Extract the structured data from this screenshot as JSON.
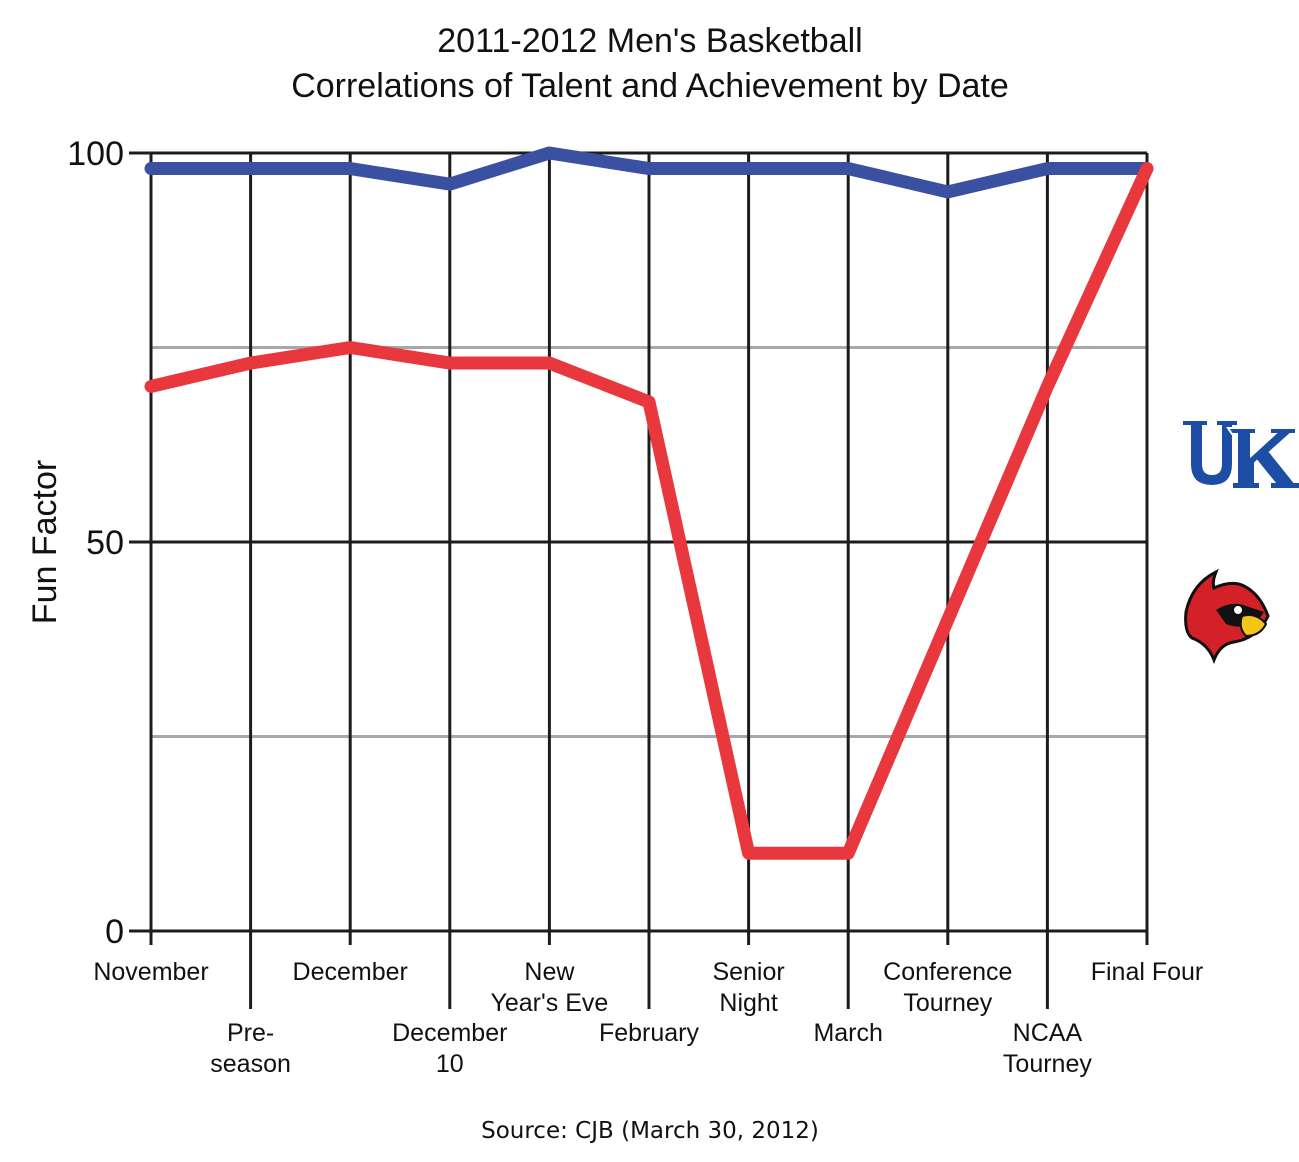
{
  "chart_data": {
    "type": "line",
    "title": [
      "2011-2012 Men's Basketball",
      "Correlations of Talent and Achievement by Date"
    ],
    "ylabel": "Fun Factor",
    "xlabel": "",
    "ylim": [
      0,
      100
    ],
    "y_ticks": [
      "0",
      "50",
      "100"
    ],
    "categories": [
      [
        "November"
      ],
      [
        "Pre-",
        "season"
      ],
      [
        "December"
      ],
      [
        "December",
        "10"
      ],
      [
        "New",
        "Year's Eve"
      ],
      [
        "February"
      ],
      [
        "Senior",
        "Night"
      ],
      [
        "March"
      ],
      [
        "Conference",
        "Tourney"
      ],
      [
        "NCAA",
        "Tourney"
      ],
      [
        "Final Four"
      ]
    ],
    "label_rows": [
      0,
      1,
      0,
      1,
      0,
      1,
      0,
      1,
      0,
      1,
      0
    ],
    "series": [
      {
        "values": [
          98,
          98,
          98,
          96,
          100,
          98,
          98,
          98,
          95,
          98,
          98
        ],
        "color": "#3a50a0",
        "logo": "uk-logo"
      },
      {
        "values": [
          70,
          73,
          75,
          73,
          73,
          68,
          10,
          10,
          40,
          70,
          98
        ],
        "color": "#e8383d",
        "logo": "cardinal-logo"
      }
    ],
    "major_grid": [
      0,
      50,
      100
    ],
    "minor_grid": [
      25,
      75
    ],
    "grid": true,
    "legend": "logos at right",
    "source": "Source:  CJB (March 30, 2012)"
  }
}
